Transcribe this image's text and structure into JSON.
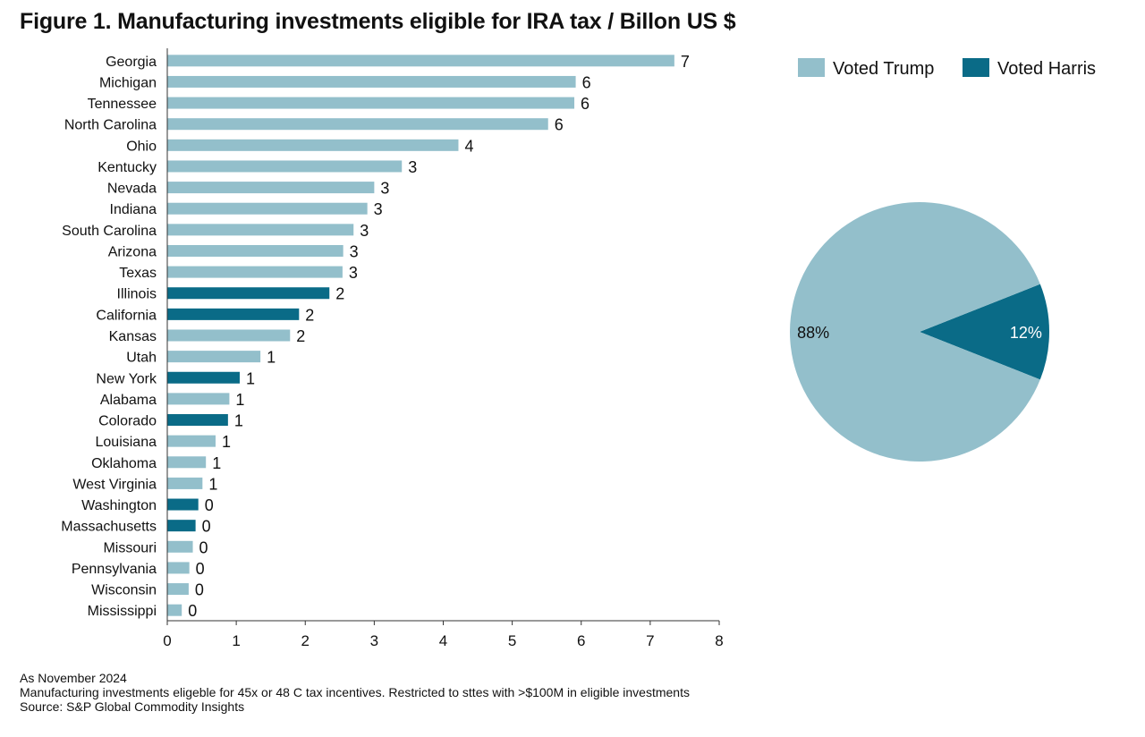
{
  "title": "Figure 1. Manufacturing investments eligible for IRA tax / Billon US $",
  "colors": {
    "trump": "#93bfcb",
    "harris": "#0a6b87",
    "axis": "#333333"
  },
  "legend": [
    {
      "key": "trump",
      "label": "Voted Trump"
    },
    {
      "key": "harris",
      "label": "Voted Harris"
    }
  ],
  "chart_data": [
    {
      "type": "bar",
      "orientation": "horizontal",
      "xlim": [
        0,
        8
      ],
      "xticks": [
        0,
        1,
        2,
        3,
        4,
        5,
        6,
        7,
        8
      ],
      "series": [
        {
          "name": "Voted Trump",
          "color_key": "trump"
        },
        {
          "name": "Voted Harris",
          "color_key": "harris"
        }
      ],
      "bars": [
        {
          "category": "Georgia",
          "value": 7.35,
          "label": "7",
          "group": "trump"
        },
        {
          "category": "Michigan",
          "value": 5.92,
          "label": "6",
          "group": "trump"
        },
        {
          "category": "Tennessee",
          "value": 5.9,
          "label": "6",
          "group": "trump"
        },
        {
          "category": "North Carolina",
          "value": 5.52,
          "label": "6",
          "group": "trump"
        },
        {
          "category": "Ohio",
          "value": 4.22,
          "label": "4",
          "group": "trump"
        },
        {
          "category": "Kentucky",
          "value": 3.4,
          "label": "3",
          "group": "trump"
        },
        {
          "category": "Nevada",
          "value": 3.0,
          "label": "3",
          "group": "trump"
        },
        {
          "category": "Indiana",
          "value": 2.9,
          "label": "3",
          "group": "trump"
        },
        {
          "category": "South Carolina",
          "value": 2.7,
          "label": "3",
          "group": "trump"
        },
        {
          "category": "Arizona",
          "value": 2.55,
          "label": "3",
          "group": "trump"
        },
        {
          "category": "Texas",
          "value": 2.54,
          "label": "3",
          "group": "trump"
        },
        {
          "category": "Illinois",
          "value": 2.35,
          "label": "2",
          "group": "harris"
        },
        {
          "category": "California",
          "value": 1.91,
          "label": "2",
          "group": "harris"
        },
        {
          "category": "Kansas",
          "value": 1.78,
          "label": "2",
          "group": "trump"
        },
        {
          "category": "Utah",
          "value": 1.35,
          "label": "1",
          "group": "trump"
        },
        {
          "category": "New York",
          "value": 1.05,
          "label": "1",
          "group": "harris"
        },
        {
          "category": "Alabama",
          "value": 0.9,
          "label": "1",
          "group": "trump"
        },
        {
          "category": "Colorado",
          "value": 0.88,
          "label": "1",
          "group": "harris"
        },
        {
          "category": "Louisiana",
          "value": 0.7,
          "label": "1",
          "group": "trump"
        },
        {
          "category": "Oklahoma",
          "value": 0.56,
          "label": "1",
          "group": "trump"
        },
        {
          "category": "West Virginia",
          "value": 0.51,
          "label": "1",
          "group": "trump"
        },
        {
          "category": "Washington",
          "value": 0.45,
          "label": "0",
          "group": "harris"
        },
        {
          "category": "Massachusetts",
          "value": 0.41,
          "label": "0",
          "group": "harris"
        },
        {
          "category": "Missouri",
          "value": 0.37,
          "label": "0",
          "group": "trump"
        },
        {
          "category": "Pennsylvania",
          "value": 0.32,
          "label": "0",
          "group": "trump"
        },
        {
          "category": "Wisconsin",
          "value": 0.31,
          "label": "0",
          "group": "trump"
        },
        {
          "category": "Mississippi",
          "value": 0.21,
          "label": "0",
          "group": "trump"
        }
      ]
    },
    {
      "type": "pie",
      "slices": [
        {
          "name": "Voted Trump",
          "value": 88,
          "label": "88%",
          "color_key": "trump"
        },
        {
          "name": "Voted Harris",
          "value": 12,
          "label": "12%",
          "color_key": "harris"
        }
      ]
    }
  ],
  "notes": [
    "As November 2024",
    "Manufacturing investments eligeble for 45x or 48 C tax incentives. Restricted to sttes with >$100M in eligible investments",
    "Source: S&P Global Commodity Insights"
  ]
}
